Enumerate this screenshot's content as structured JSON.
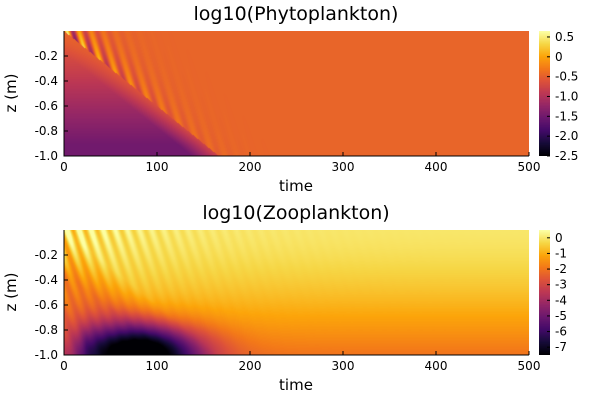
{
  "chart_data": [
    {
      "type": "heatmap",
      "title": "log10(Phytoplankton)",
      "xlabel": "time",
      "ylabel": "z (m)",
      "xlim": [
        0,
        500
      ],
      "ylim": [
        -1.0,
        0.0
      ],
      "xticks": [
        "0",
        "100",
        "200",
        "300",
        "400",
        "500"
      ],
      "yticks": [
        "-0.2",
        "-0.4",
        "-0.6",
        "-0.8",
        "-1.0"
      ],
      "colorbar": {
        "colormap": "inferno",
        "clim": [
          -2.5,
          0.65
        ],
        "ticks": [
          "0.5",
          "0",
          "-0.5",
          "-1.0",
          "-1.5",
          "-2.0",
          "-2.5"
        ]
      },
      "field": {
        "steady_value": -0.45,
        "initial_bottom_value": -1.5,
        "front_speed_depth_per_time": 0.006,
        "oscillation_period_time": 13,
        "oscillation_amplitude": 1.1,
        "min_value": -2.5
      }
    },
    {
      "type": "heatmap",
      "title": "log10(Zooplankton)",
      "xlabel": "time",
      "ylabel": "z (m)",
      "xlim": [
        0,
        500
      ],
      "ylim": [
        -1.0,
        0.0
      ],
      "xticks": [
        "0",
        "100",
        "200",
        "300",
        "400",
        "500"
      ],
      "yticks": [
        "-0.2",
        "-0.4",
        "-0.6",
        "-0.8",
        "-1.0"
      ],
      "colorbar": {
        "colormap": "inferno",
        "clim": [
          -7.5,
          0.5
        ],
        "ticks": [
          "0",
          "-1",
          "-2",
          "-3",
          "-4",
          "-5",
          "-6",
          "-7"
        ]
      },
      "field": {
        "surface_value": 0.0,
        "deep_value": -2.0,
        "trough_value": -7.5,
        "trough_time": 80,
        "trough_depth": -0.97,
        "oscillation_period_time": 13,
        "oscillation_amplitude": 1.2
      }
    }
  ]
}
